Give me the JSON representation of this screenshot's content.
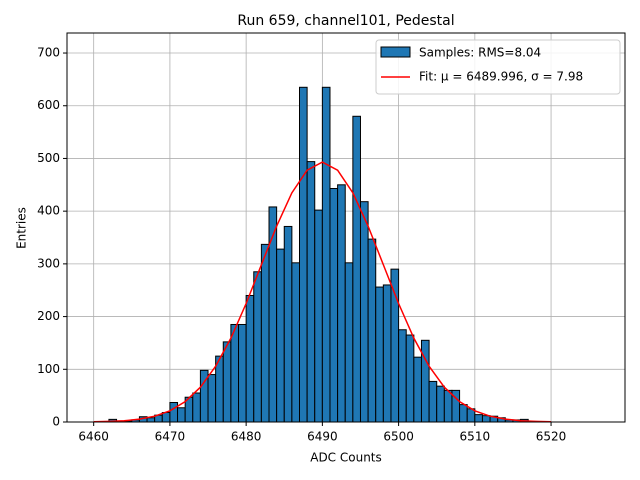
{
  "chart_data": {
    "type": "histogram",
    "title": "Run 659, channel101, Pedestal",
    "xlabel": "ADC Counts",
    "ylabel": "Entries",
    "name": "Samples: RMS=8.04",
    "color": "#1f77b4",
    "edgecolor": "#000000",
    "bins": [
      6462,
      6463,
      6464,
      6465,
      6466,
      6467,
      6468,
      6469,
      6470,
      6471,
      6472,
      6473,
      6474,
      6475,
      6476,
      6477,
      6478,
      6479,
      6480,
      6481,
      6482,
      6483,
      6484,
      6485,
      6486,
      6487,
      6488,
      6489,
      6490,
      6491,
      6492,
      6493,
      6494,
      6495,
      6496,
      6497,
      6498,
      6499,
      6500,
      6501,
      6502,
      6503,
      6504,
      6505,
      6506,
      6507,
      6508,
      6509,
      6510,
      6511,
      6512,
      6513,
      6514,
      6515,
      6516,
      6517,
      6518
    ],
    "values": [
      5,
      1,
      2,
      4,
      10,
      8,
      13,
      18,
      37,
      27,
      47,
      55,
      98,
      90,
      125,
      152,
      185,
      185,
      240,
      285,
      337,
      408,
      328,
      371,
      302,
      635,
      494,
      402,
      635,
      443,
      450,
      302,
      580,
      418,
      347,
      256,
      260,
      290,
      175,
      165,
      123,
      155,
      77,
      68,
      60,
      60,
      33,
      25,
      14,
      12,
      11,
      8,
      4,
      4,
      5,
      1
    ],
    "fit": {
      "name": "Fit: μ = 6489.996, σ = 7.98",
      "color": "#ff0000",
      "x": [
        6460,
        6462,
        6464,
        6466,
        6468,
        6470,
        6472,
        6474,
        6476,
        6478,
        6480,
        6482,
        6484,
        6486,
        6488,
        6490,
        6492,
        6494,
        6496,
        6498,
        6500,
        6502,
        6504,
        6506,
        6508,
        6510,
        6512,
        6514,
        6516,
        6518,
        6520
      ],
      "values": [
        0.4,
        1.1,
        2.4,
        5.4,
        11.0,
        21.3,
        38.7,
        66.0,
        105.8,
        159.1,
        224.8,
        298.3,
        371.6,
        434.8,
        477.8,
        493,
        477.8,
        434.8,
        371.6,
        298.3,
        224.8,
        159.1,
        105.8,
        66.0,
        38.7,
        21.3,
        11.0,
        5.4,
        2.4,
        1.1,
        0.4
      ]
    },
    "xlim": [
      6456.5,
      6529.7
    ],
    "ylim": [
      0,
      738
    ],
    "xticks": [
      6460,
      6470,
      6480,
      6490,
      6500,
      6510,
      6520
    ],
    "yticks": [
      0,
      100,
      200,
      300,
      400,
      500,
      600,
      700
    ],
    "grid": true,
    "legend": "upper right"
  }
}
